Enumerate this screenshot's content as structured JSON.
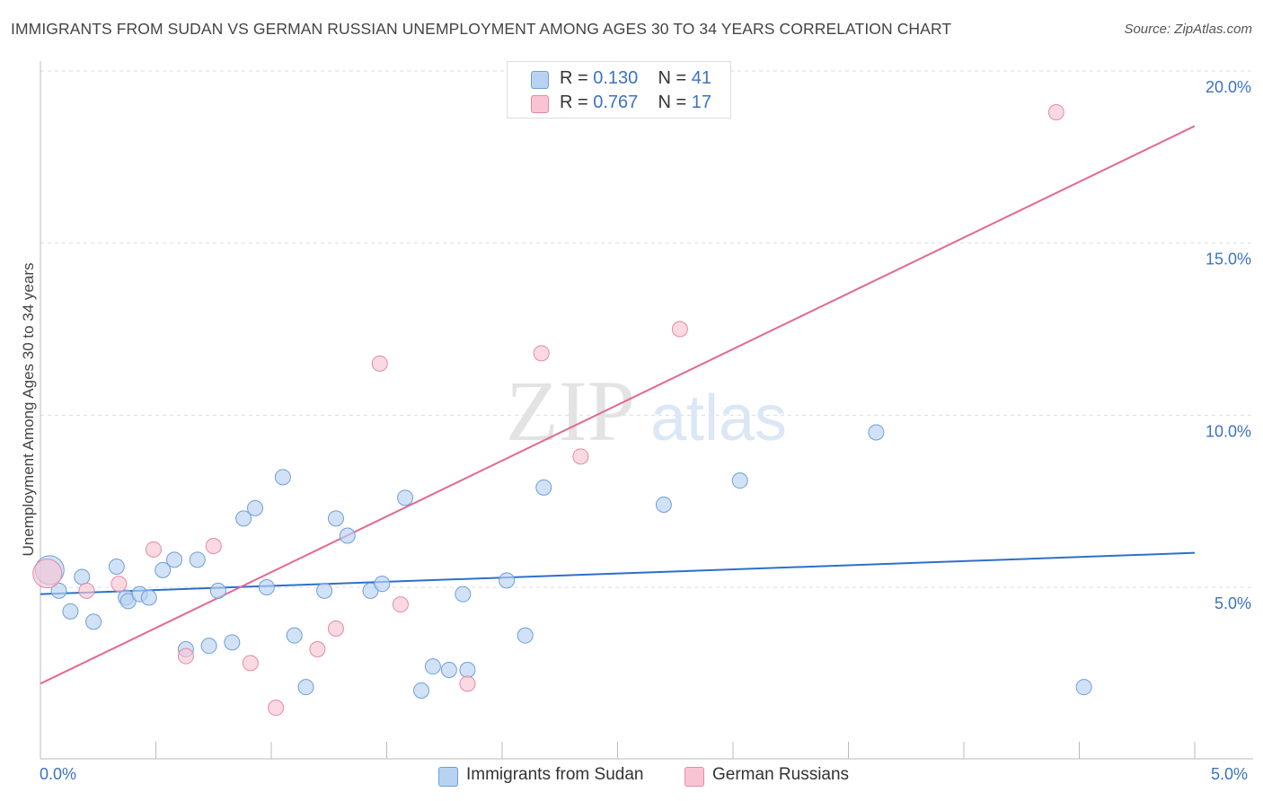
{
  "title": "IMMIGRANTS FROM SUDAN VS GERMAN RUSSIAN UNEMPLOYMENT AMONG AGES 30 TO 34 YEARS CORRELATION CHART",
  "source": "Source: ZipAtlas.com",
  "colors": {
    "blue_fill": "#b8d3f2",
    "blue_stroke": "#6f9fd6",
    "blue_line": "#2f6fcb",
    "pink_fill": "#f8c4d4",
    "pink_stroke": "#e48aa6",
    "pink_line": "#e06a93",
    "tick_text": "#3b73c4",
    "grid": "#dddddd"
  },
  "legend_top": [
    {
      "r_label": "R = ",
      "r_value": "0.130",
      "n_label": "N = ",
      "n_value": "41",
      "color": "blue"
    },
    {
      "r_label": "R = ",
      "r_value": "0.767",
      "n_label": "N = ",
      "n_value": "17",
      "color": "pink"
    }
  ],
  "legend_bottom": [
    {
      "label": "Immigrants from Sudan",
      "color": "blue"
    },
    {
      "label": "German Russians",
      "color": "pink"
    }
  ],
  "watermark": {
    "zip": "ZIP",
    "atlas": "atlas"
  },
  "chart_data": {
    "type": "scatter",
    "title": "IMMIGRANTS FROM SUDAN VS GERMAN RUSSIAN UNEMPLOYMENT AMONG AGES 30 TO 34 YEARS CORRELATION CHART",
    "xlabel": "",
    "ylabel": "Unemployment Among Ages 30 to 34 years",
    "xlim": [
      0,
      5
    ],
    "ylim": [
      0,
      20
    ],
    "x_tick_labels": [
      "0.0%",
      "5.0%"
    ],
    "y_ticks": [
      5,
      10,
      15,
      20
    ],
    "y_tick_labels": [
      "5.0%",
      "10.0%",
      "15.0%",
      "20.0%"
    ],
    "grid": true,
    "legend_position": "top-center",
    "series": [
      {
        "name": "Immigrants from Sudan",
        "color": "blue",
        "trend": {
          "x": [
            0,
            5
          ],
          "y": [
            4.8,
            6.0
          ]
        },
        "points": [
          [
            0.04,
            5.5
          ],
          [
            0.08,
            4.9
          ],
          [
            0.13,
            4.3
          ],
          [
            0.18,
            5.3
          ],
          [
            0.23,
            4.0
          ],
          [
            0.33,
            5.6
          ],
          [
            0.37,
            4.7
          ],
          [
            0.38,
            4.6
          ],
          [
            0.43,
            4.8
          ],
          [
            0.47,
            4.7
          ],
          [
            0.53,
            5.5
          ],
          [
            0.58,
            5.8
          ],
          [
            0.63,
            3.2
          ],
          [
            0.68,
            5.8
          ],
          [
            0.73,
            3.3
          ],
          [
            0.77,
            4.9
          ],
          [
            0.83,
            3.4
          ],
          [
            0.88,
            7.0
          ],
          [
            0.93,
            7.3
          ],
          [
            0.98,
            5.0
          ],
          [
            1.05,
            8.2
          ],
          [
            1.1,
            3.6
          ],
          [
            1.15,
            2.1
          ],
          [
            1.23,
            4.9
          ],
          [
            1.28,
            7.0
          ],
          [
            1.33,
            6.5
          ],
          [
            1.43,
            4.9
          ],
          [
            1.48,
            5.1
          ],
          [
            1.58,
            7.6
          ],
          [
            1.65,
            2.0
          ],
          [
            1.7,
            2.7
          ],
          [
            1.77,
            2.6
          ],
          [
            1.83,
            4.8
          ],
          [
            1.85,
            2.6
          ],
          [
            2.02,
            5.2
          ],
          [
            2.1,
            3.6
          ],
          [
            2.18,
            7.9
          ],
          [
            2.7,
            7.4
          ],
          [
            3.03,
            8.1
          ],
          [
            3.62,
            9.5
          ],
          [
            4.52,
            2.1
          ]
        ]
      },
      {
        "name": "German Russians",
        "color": "pink",
        "trend": {
          "x": [
            0,
            5
          ],
          "y": [
            2.2,
            18.4
          ]
        },
        "points": [
          [
            0.03,
            5.4
          ],
          [
            0.2,
            4.9
          ],
          [
            0.34,
            5.1
          ],
          [
            0.49,
            6.1
          ],
          [
            0.63,
            3.0
          ],
          [
            0.75,
            6.2
          ],
          [
            0.91,
            2.8
          ],
          [
            1.02,
            1.5
          ],
          [
            1.2,
            3.2
          ],
          [
            1.28,
            3.8
          ],
          [
            1.47,
            11.5
          ],
          [
            1.56,
            4.5
          ],
          [
            1.85,
            2.2
          ],
          [
            2.17,
            11.8
          ],
          [
            2.34,
            8.8
          ],
          [
            2.77,
            12.5
          ],
          [
            4.4,
            18.8
          ]
        ]
      }
    ]
  }
}
